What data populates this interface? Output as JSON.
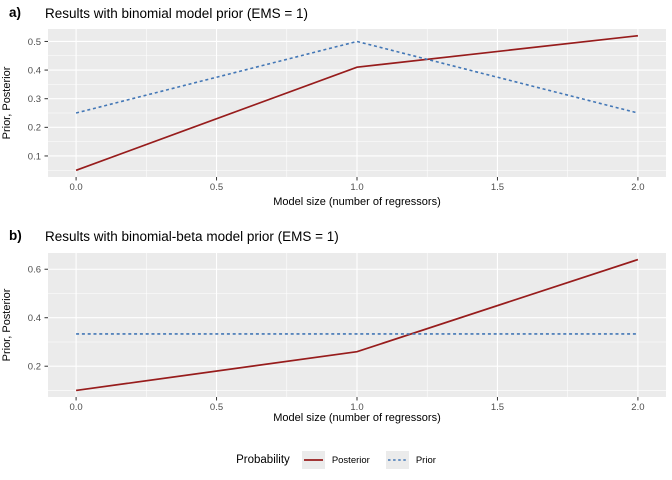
{
  "figure": {
    "background": "#ffffff"
  },
  "chart_data": [
    {
      "type": "line",
      "tag": "a)",
      "title": "Results with binomial model prior (EMS = 1)",
      "xlabel": "Model size (number of regressors)",
      "ylabel": "Prior, Posterior",
      "x": [
        0,
        1,
        2
      ],
      "series": [
        {
          "name": "Posterior",
          "values": [
            0.05,
            0.41,
            0.52
          ],
          "color": "#971C1C",
          "linetype": "solid"
        },
        {
          "name": "Prior",
          "values": [
            0.25,
            0.5,
            0.25
          ],
          "color": "#4377B6",
          "linetype": "dashed"
        }
      ],
      "xticks": [
        0.0,
        0.5,
        1.0,
        1.5,
        2.0
      ],
      "xtick_labels": [
        "0.0",
        "0.5",
        "1.0",
        "1.5",
        "2.0"
      ],
      "yticks": [
        0.1,
        0.2,
        0.3,
        0.4,
        0.5
      ],
      "ytick_labels": [
        "0.1",
        "0.2",
        "0.3",
        "0.4",
        "0.5"
      ],
      "xlim": [
        -0.1,
        2.1
      ],
      "ylim": [
        0.027,
        0.544
      ],
      "grid": "on",
      "panel_bg": "#EBEBEB"
    },
    {
      "type": "line",
      "tag": "b)",
      "title": "Results with binomial-beta model prior (EMS = 1)",
      "xlabel": "Model size (number of regressors)",
      "ylabel": "Prior, Posterior",
      "x": [
        0,
        1,
        2
      ],
      "series": [
        {
          "name": "Posterior",
          "values": [
            0.1,
            0.26,
            0.64
          ],
          "color": "#971C1C",
          "linetype": "solid"
        },
        {
          "name": "Prior",
          "values": [
            0.3333,
            0.3333,
            0.3333
          ],
          "color": "#4377B6",
          "linetype": "dashed"
        }
      ],
      "xticks": [
        0.0,
        0.5,
        1.0,
        1.5,
        2.0
      ],
      "xtick_labels": [
        "0.0",
        "0.5",
        "1.0",
        "1.5",
        "2.0"
      ],
      "yticks": [
        0.2,
        0.4,
        0.6
      ],
      "ytick_labels": [
        "0.2",
        "0.4",
        "0.6"
      ],
      "xlim": [
        -0.1,
        2.1
      ],
      "ylim": [
        0.073,
        0.667
      ],
      "grid": "on",
      "panel_bg": "#EBEBEB"
    }
  ],
  "legend": {
    "title": "Probability",
    "position": "bottom",
    "items": [
      {
        "label": "Posterior",
        "color": "#971C1C",
        "linetype": "solid"
      },
      {
        "label": "Prior",
        "color": "#4377B6",
        "linetype": "dashed"
      }
    ]
  },
  "colors": {
    "panel_bg": "#EBEBEB",
    "grid_major": "#FFFFFF",
    "grid_minor": "#FFFFFF",
    "axis_text": "#4D4D4D",
    "tick_mark": "#333333",
    "posterior_line": "#971C1C",
    "prior_line": "#4377B6",
    "legend_key_bg": "#EBEBEB"
  }
}
